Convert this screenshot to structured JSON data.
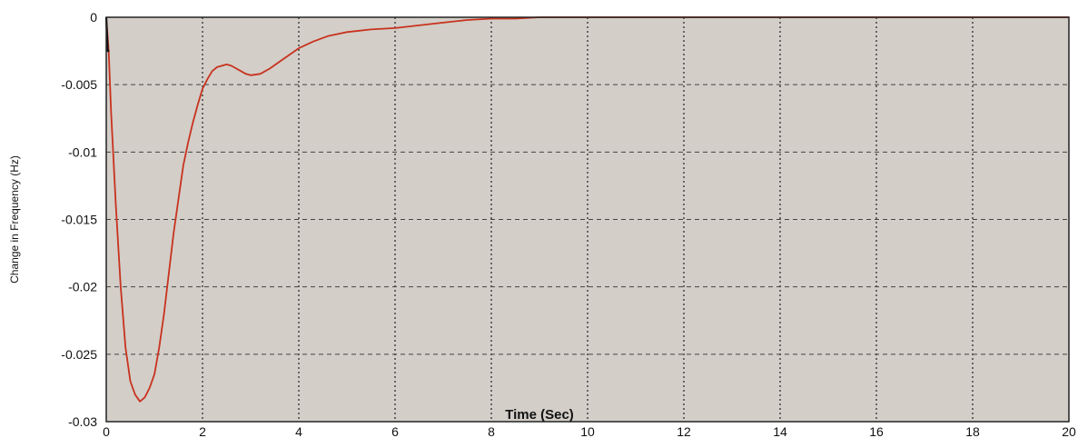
{
  "chart_data": {
    "type": "line",
    "xlabel": "Time (Sec)",
    "ylabel": "Change in Frequency (Hz)",
    "xlim": [
      0,
      20
    ],
    "ylim": [
      -0.03,
      0
    ],
    "xticks": [
      "0",
      "2",
      "4",
      "6",
      "8",
      "10",
      "12",
      "14",
      "16",
      "18",
      "20"
    ],
    "yticks": [
      "0",
      "-0.005",
      "-0.01",
      "-0.015",
      "-0.02",
      "-0.025",
      "-0.03"
    ],
    "grid": true,
    "plot_background": "#d3cec8",
    "series": [
      {
        "color": "#c8321e",
        "x": [
          0,
          0.05,
          0.1,
          0.2,
          0.3,
          0.4,
          0.5,
          0.6,
          0.7,
          0.8,
          0.9,
          1.0,
          1.1,
          1.2,
          1.3,
          1.4,
          1.5,
          1.6,
          1.7,
          1.8,
          1.9,
          2.0,
          2.1,
          2.2,
          2.3,
          2.4,
          2.5,
          2.6,
          2.7,
          2.8,
          2.9,
          3.0,
          3.2,
          3.4,
          3.6,
          3.8,
          4.0,
          4.3,
          4.6,
          5.0,
          5.5,
          6.0,
          6.5,
          7.0,
          7.5,
          8.0,
          8.5,
          9.0,
          9.5,
          10.0,
          12,
          14,
          16,
          18,
          20
        ],
        "y": [
          0,
          -0.0025,
          -0.007,
          -0.014,
          -0.02,
          -0.0245,
          -0.027,
          -0.028,
          -0.0285,
          -0.0282,
          -0.0275,
          -0.0265,
          -0.0245,
          -0.022,
          -0.019,
          -0.016,
          -0.0135,
          -0.011,
          -0.0093,
          -0.0078,
          -0.0065,
          -0.0053,
          -0.0046,
          -0.004,
          -0.0037,
          -0.0036,
          -0.0035,
          -0.0036,
          -0.0038,
          -0.004,
          -0.0042,
          -0.0043,
          -0.0042,
          -0.0038,
          -0.0033,
          -0.0028,
          -0.0023,
          -0.0018,
          -0.0014,
          -0.0011,
          -0.0009,
          -0.0008,
          -0.0006,
          -0.0004,
          -0.0002,
          -0.0001,
          -0.0001,
          0,
          0,
          0,
          0,
          0,
          0,
          0,
          0
        ]
      },
      {
        "color": "#111111",
        "x": [
          0,
          0.03,
          0.06
        ],
        "y": [
          0,
          -0.0025,
          -0.0025
        ]
      }
    ]
  }
}
